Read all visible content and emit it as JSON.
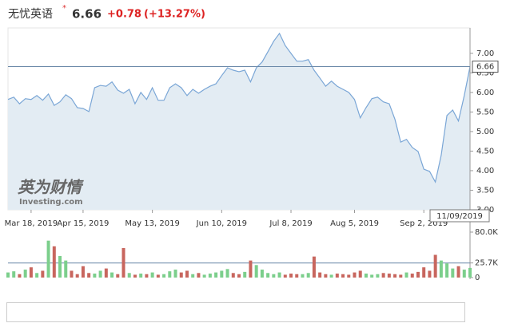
{
  "chart_data": {
    "type": "line",
    "header": {
      "name": "无忧英语",
      "change": "+0.78",
      "change_pct": "(+13.27%)"
    },
    "last_price": 6.66,
    "cursor_label": "11/09/2019",
    "watermark": {
      "cn": "英为财情",
      "en": "Investing.com"
    },
    "color": "#7aa6d6",
    "fill": "#e3ecf3",
    "ylim": [
      3.0,
      7.65
    ],
    "yticks": [
      {
        "value": 3.0,
        "label": "3.00"
      },
      {
        "value": 3.5,
        "label": "3.50"
      },
      {
        "value": 4.0,
        "label": "4.00"
      },
      {
        "value": 4.5,
        "label": "4.50"
      },
      {
        "value": 5.0,
        "label": "5.00"
      },
      {
        "value": 5.5,
        "label": "5.50"
      },
      {
        "value": 6.0,
        "label": "6.00"
      },
      {
        "value": 6.5,
        "label": "6.50"
      },
      {
        "value": 7.0,
        "label": "7.00"
      }
    ],
    "xticks": [
      {
        "value": 4,
        "label": "Mar 18, 2019"
      },
      {
        "value": 13,
        "label": "Apr 15, 2019"
      },
      {
        "value": 25,
        "label": "May 13, 2019"
      },
      {
        "value": 37,
        "label": "Jun 10, 2019"
      },
      {
        "value": 49,
        "label": "Jul 8, 2019"
      },
      {
        "value": 60,
        "label": "Aug 5, 2019"
      },
      {
        "value": 72,
        "label": "Sep 2, 2019"
      }
    ],
    "values": [
      5.82,
      5.88,
      5.71,
      5.84,
      5.82,
      5.92,
      5.8,
      5.96,
      5.67,
      5.76,
      5.94,
      5.84,
      5.61,
      5.59,
      5.51,
      6.12,
      6.18,
      6.16,
      6.27,
      6.06,
      5.98,
      6.08,
      5.71,
      6.0,
      5.82,
      6.12,
      5.8,
      5.8,
      6.12,
      6.22,
      6.12,
      5.92,
      6.08,
      5.98,
      6.08,
      6.16,
      6.22,
      6.43,
      6.63,
      6.57,
      6.53,
      6.57,
      6.27,
      6.63,
      6.78,
      7.04,
      7.31,
      7.51,
      7.2,
      7.0,
      6.8,
      6.8,
      6.84,
      6.57,
      6.37,
      6.16,
      6.29,
      6.16,
      6.08,
      6.0,
      5.82,
      5.35,
      5.61,
      5.84,
      5.88,
      5.76,
      5.71,
      5.31,
      4.73,
      4.8,
      4.59,
      4.49,
      4.04,
      3.98,
      3.71,
      4.39,
      5.41,
      5.55,
      5.27,
      5.92,
      6.66
    ],
    "volume": {
      "ylim": [
        0,
        80000
      ],
      "yticks": [
        {
          "value": 0,
          "label": "0"
        },
        {
          "value": 25700,
          "label": "25.7K"
        },
        {
          "value": 80000,
          "label": "80.0K"
        }
      ],
      "up_color": "#7ccf8c",
      "down_color": "#c8665e",
      "values": [
        9000,
        11000,
        6000,
        14000,
        18000,
        8000,
        12000,
        65000,
        55000,
        38000,
        30000,
        12000,
        6000,
        20000,
        8000,
        7000,
        12000,
        16000,
        9000,
        6000,
        52000,
        8000,
        5000,
        7000,
        6000,
        9000,
        5000,
        6000,
        11000,
        14000,
        9000,
        12000,
        6000,
        8000,
        5000,
        7000,
        9000,
        12000,
        15000,
        8000,
        6000,
        10000,
        30000,
        22000,
        14000,
        8000,
        6000,
        9000,
        5000,
        7000,
        6000,
        6000,
        8000,
        37000,
        9000,
        6000,
        5000,
        7000,
        6000,
        5000,
        9000,
        12000,
        7000,
        5000,
        6000,
        8000,
        7000,
        6000,
        5000,
        9000,
        7000,
        10000,
        18000,
        12000,
        40000,
        30000,
        25000,
        16000,
        20000,
        14000,
        17000
      ]
    }
  }
}
